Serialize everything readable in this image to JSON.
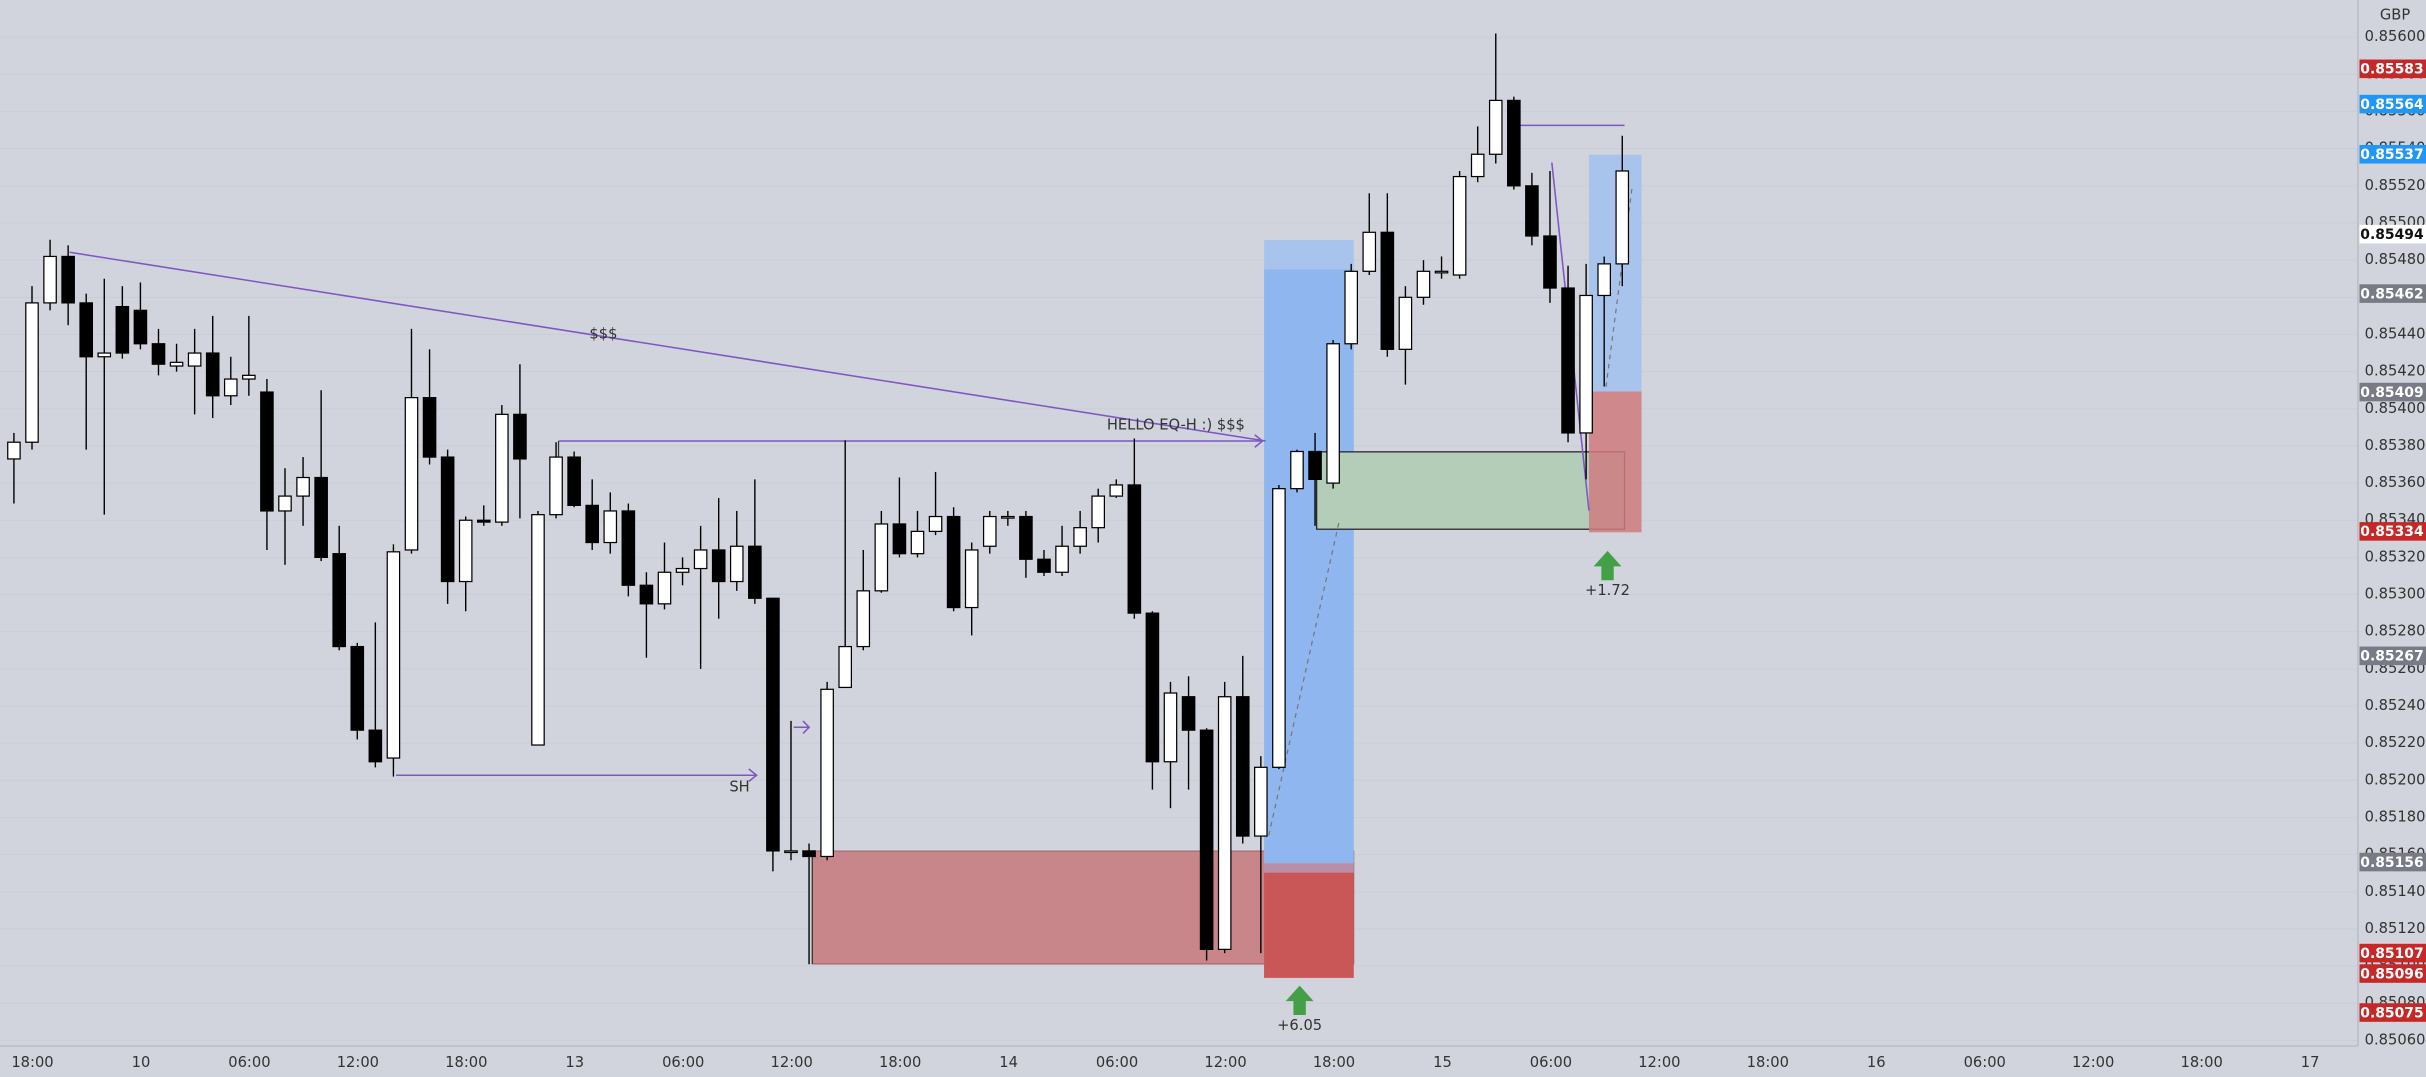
{
  "currency": "GBP",
  "price_axis": {
    "ylim": [
      0.85057,
      0.8562
    ],
    "ticks": [
      {
        "value": 0.8506,
        "label": "0.85060"
      },
      {
        "value": 0.8508,
        "label": "0.85080"
      },
      {
        "value": 0.851,
        "label": "0.85100"
      },
      {
        "value": 0.8512,
        "label": "0.85120"
      },
      {
        "value": 0.8514,
        "label": "0.85140"
      },
      {
        "value": 0.8516,
        "label": "0.85160"
      },
      {
        "value": 0.8518,
        "label": "0.85180"
      },
      {
        "value": 0.852,
        "label": "0.85200"
      },
      {
        "value": 0.8522,
        "label": "0.85220"
      },
      {
        "value": 0.8524,
        "label": "0.85240"
      },
      {
        "value": 0.8526,
        "label": "0.85260"
      },
      {
        "value": 0.8528,
        "label": "0.85280"
      },
      {
        "value": 0.853,
        "label": "0.85300"
      },
      {
        "value": 0.8532,
        "label": "0.85320"
      },
      {
        "value": 0.8534,
        "label": "0.85340"
      },
      {
        "value": 0.8536,
        "label": "0.85360"
      },
      {
        "value": 0.8538,
        "label": "0.85380"
      },
      {
        "value": 0.854,
        "label": "0.85400"
      },
      {
        "value": 0.8542,
        "label": "0.85420"
      },
      {
        "value": 0.8544,
        "label": "0.85440"
      },
      {
        "value": 0.8546,
        "label": "0.85460"
      },
      {
        "value": 0.8548,
        "label": "0.85480"
      },
      {
        "value": 0.855,
        "label": "0.85500"
      },
      {
        "value": 0.8552,
        "label": "0.85520"
      },
      {
        "value": 0.8554,
        "label": "0.85540"
      },
      {
        "value": 0.8556,
        "label": "0.85560"
      },
      {
        "value": 0.8558,
        "label": "0.85580"
      },
      {
        "value": 0.856,
        "label": "0.85600"
      }
    ],
    "badges": [
      {
        "value": 0.85583,
        "color": "#c62828"
      },
      {
        "value": 0.85564,
        "color": "#2196f3"
      },
      {
        "value": 0.85537,
        "color": "#2196f3"
      },
      {
        "value": 0.85494,
        "color": "#ffffff"
      },
      {
        "value": 0.85462,
        "color": "#787b86"
      },
      {
        "value": 0.85409,
        "color": "#787b86"
      },
      {
        "value": 0.85334,
        "color": "#c62828"
      },
      {
        "value": 0.85267,
        "color": "#787b86"
      },
      {
        "value": 0.85156,
        "color": "#787b86"
      },
      {
        "value": 0.85107,
        "color": "#c62828"
      },
      {
        "value": 0.85096,
        "color": "#c62828"
      },
      {
        "value": 0.85075,
        "color": "#c62828"
      }
    ]
  },
  "time_axis": [
    "18:00",
    "10",
    "06:00",
    "12:00",
    "18:00",
    "13",
    "06:00",
    "12:00",
    "18:00",
    "14",
    "06:00",
    "12:00",
    "18:00",
    "15",
    "06:00",
    "12:00",
    "18:00",
    "16",
    "06:00",
    "12:00",
    "18:00",
    "17"
  ],
  "candles": {
    "open": [
      0.85373,
      0.85382,
      0.85457,
      0.85482,
      0.85457,
      0.85428,
      0.85455,
      0.85453,
      0.85435,
      0.85423,
      0.85423,
      0.8543,
      0.85407,
      0.85416,
      0.85409,
      0.85345,
      0.85353,
      0.85363,
      0.85322,
      0.85272,
      0.85227,
      0.85212,
      0.85324,
      0.85406,
      0.85374,
      0.85307,
      0.8534,
      0.85339,
      0.85397,
      0.85219,
      0.85343,
      0.85374,
      0.85348,
      0.85328,
      0.85345,
      0.85305,
      0.85295,
      0.85312,
      0.85314,
      0.85324,
      0.85307,
      0.85326,
      0.85298,
      0.85162,
      0.85162,
      0.85159,
      0.8525,
      0.85272,
      0.85302,
      0.85338,
      0.85322,
      0.85334,
      0.85342,
      0.85293,
      0.85326,
      0.85342,
      0.85342,
      0.85319,
      0.85312,
      0.85326,
      0.85336,
      0.85353,
      0.85359,
      0.8529,
      0.8521,
      0.85245,
      0.85227,
      0.85109,
      0.85245,
      0.8517,
      0.85207,
      0.85357,
      0.85377,
      0.8536,
      0.85435,
      0.85474,
      0.85495,
      0.85432,
      0.8546,
      0.85474,
      0.85472,
      0.85525,
      0.85537,
      0.85566,
      0.8552,
      0.85493,
      0.85465,
      0.85387,
      0.85461,
      0.85478
    ],
    "high": [
      0.85387,
      0.85466,
      0.85491,
      0.85488,
      0.85462,
      0.8547,
      0.85466,
      0.85468,
      0.85443,
      0.85435,
      0.85443,
      0.8545,
      0.85428,
      0.8545,
      0.85416,
      0.85368,
      0.85374,
      0.8541,
      0.85337,
      0.85274,
      0.85285,
      0.85327,
      0.85443,
      0.85432,
      0.85378,
      0.85342,
      0.85348,
      0.85402,
      0.85424,
      0.85345,
      0.85382,
      0.85377,
      0.85362,
      0.85355,
      0.85349,
      0.85312,
      0.85328,
      0.8532,
      0.85337,
      0.85352,
      0.85345,
      0.85362,
      0.85298,
      0.85232,
      0.85166,
      0.85253,
      0.85383,
      0.85324,
      0.85345,
      0.85363,
      0.85345,
      0.85366,
      0.85347,
      0.85328,
      0.85345,
      0.85345,
      0.85345,
      0.85324,
      0.85337,
      0.85345,
      0.85357,
      0.85362,
      0.85384,
      0.85291,
      0.85253,
      0.85256,
      0.85228,
      0.85253,
      0.85267,
      0.85213,
      0.85359,
      0.85378,
      0.85387,
      0.85437,
      0.85478,
      0.85516,
      0.85516,
      0.85466,
      0.8548,
      0.85482,
      0.85528,
      0.85552,
      0.85602,
      0.85568,
      0.85527,
      0.85528,
      0.85477,
      0.85478,
      0.85482,
      0.85547
    ],
    "low": [
      0.85349,
      0.85378,
      0.85453,
      0.85445,
      0.85378,
      0.85343,
      0.85427,
      0.85432,
      0.85418,
      0.8542,
      0.85397,
      0.85395,
      0.85402,
      0.85407,
      0.85324,
      0.85316,
      0.85337,
      0.85318,
      0.8527,
      0.85222,
      0.85207,
      0.85202,
      0.85322,
      0.8537,
      0.85295,
      0.85291,
      0.85337,
      0.85337,
      0.85341,
      0.85219,
      0.85341,
      0.85347,
      0.85324,
      0.85322,
      0.85299,
      0.85266,
      0.85292,
      0.85305,
      0.8526,
      0.85287,
      0.85302,
      0.85295,
      0.85151,
      0.85157,
      0.85101,
      0.85157,
      0.8525,
      0.8527,
      0.85301,
      0.8532,
      0.8532,
      0.85332,
      0.85291,
      0.85278,
      0.85322,
      0.85337,
      0.85309,
      0.8531,
      0.8531,
      0.85322,
      0.85328,
      0.85352,
      0.85287,
      0.85195,
      0.85185,
      0.85195,
      0.85103,
      0.85107,
      0.85166,
      0.85107,
      0.85206,
      0.85355,
      0.85337,
      0.85357,
      0.85432,
      0.85472,
      0.85428,
      0.85413,
      0.85456,
      0.8547,
      0.8547,
      0.85522,
      0.85532,
      0.85518,
      0.85488,
      0.85457,
      0.85382,
      0.85362,
      0.85412,
      0.85466
    ],
    "close": [
      0.85382,
      0.85457,
      0.85482,
      0.85457,
      0.85428,
      0.8543,
      0.8543,
      0.85435,
      0.85424,
      0.85425,
      0.8543,
      0.85407,
      0.85416,
      0.85418,
      0.85345,
      0.85353,
      0.85363,
      0.8532,
      0.85272,
      0.85227,
      0.8521,
      0.85323,
      0.85406,
      0.85374,
      0.85307,
      0.8534,
      0.85339,
      0.85397,
      0.85373,
      0.85343,
      0.85374,
      0.85348,
      0.85328,
      0.85345,
      0.85305,
      0.85295,
      0.85312,
      0.85314,
      0.85324,
      0.85307,
      0.85326,
      0.85298,
      0.85162,
      0.85162,
      0.85159,
      0.85249,
      0.85272,
      0.85302,
      0.85338,
      0.85322,
      0.85334,
      0.85342,
      0.85293,
      0.85324,
      0.85342,
      0.85342,
      0.85319,
      0.85312,
      0.85326,
      0.85336,
      0.85353,
      0.85359,
      0.8529,
      0.8521,
      0.85247,
      0.85227,
      0.85109,
      0.85245,
      0.8517,
      0.85207,
      0.85357,
      0.85377,
      0.85362,
      0.85435,
      0.85474,
      0.85495,
      0.85432,
      0.8546,
      0.85474,
      0.85474,
      0.85525,
      0.85537,
      0.85566,
      0.8552,
      0.85493,
      0.85465,
      0.85387,
      0.85461,
      0.85478,
      0.85528
    ]
  },
  "annotations": {
    "liquidity": "$$$",
    "eq_high": "HELLO EQ-H :) $$$",
    "swing_high": "SH",
    "trade_1": "+6.05",
    "trade_2": "+1.72"
  }
}
